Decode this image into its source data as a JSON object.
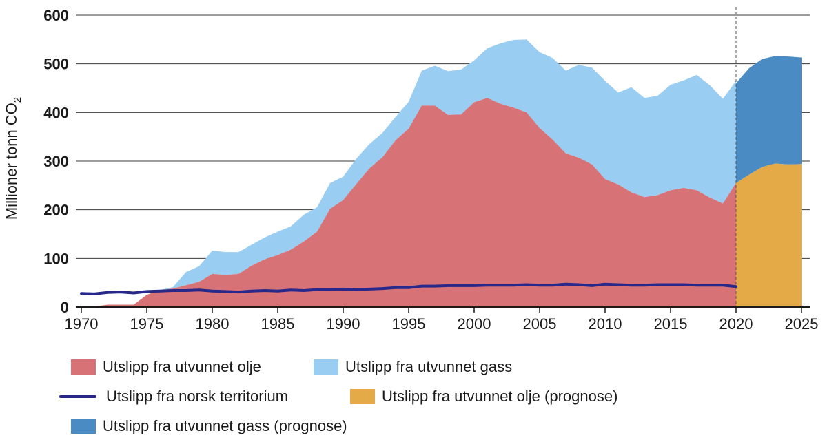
{
  "chart_data": {
    "type": "area",
    "ylabel": "Millioner tonn CO",
    "ylabel_subscript": "2",
    "ylim": [
      0,
      600
    ],
    "xlim": [
      1970,
      2025
    ],
    "yticks": [
      0,
      100,
      200,
      300,
      400,
      500,
      600
    ],
    "xticks": [
      1970,
      1975,
      1980,
      1985,
      1990,
      1995,
      2000,
      2005,
      2010,
      2015,
      2020,
      2025
    ],
    "grid": "horizontal",
    "stacked": true,
    "forecast_start": 2020,
    "x": [
      1970,
      1971,
      1972,
      1973,
      1974,
      1975,
      1976,
      1977,
      1978,
      1979,
      1980,
      1981,
      1982,
      1983,
      1984,
      1985,
      1986,
      1987,
      1988,
      1989,
      1990,
      1991,
      1992,
      1993,
      1994,
      1995,
      1996,
      1997,
      1998,
      1999,
      2000,
      2001,
      2002,
      2003,
      2004,
      2005,
      2006,
      2007,
      2008,
      2009,
      2010,
      2011,
      2012,
      2013,
      2014,
      2015,
      2016,
      2017,
      2018,
      2019,
      2020
    ],
    "series": [
      {
        "name": "Utslipp fra utvunnet olje",
        "kind": "area",
        "color": "#d77376",
        "values": [
          0,
          1,
          5,
          5,
          5,
          25,
          35,
          38,
          45,
          52,
          68,
          66,
          68,
          85,
          98,
          107,
          118,
          135,
          155,
          202,
          220,
          253,
          285,
          308,
          343,
          367,
          414,
          414,
          395,
          396,
          421,
          430,
          418,
          410,
          400,
          368,
          344,
          316,
          307,
          293,
          263,
          252,
          236,
          226,
          230,
          240,
          245,
          240,
          225,
          213,
          255
        ]
      },
      {
        "name": "Utslipp fra utvunnet gass",
        "kind": "area",
        "color": "#99cdf2",
        "values": [
          0,
          0,
          0,
          0,
          0,
          0,
          0,
          3,
          27,
          32,
          48,
          47,
          45,
          43,
          45,
          48,
          48,
          55,
          50,
          53,
          48,
          52,
          50,
          50,
          48,
          55,
          72,
          82,
          90,
          92,
          86,
          102,
          124,
          139,
          150,
          156,
          168,
          170,
          191,
          199,
          202,
          189,
          216,
          204,
          204,
          217,
          221,
          237,
          231,
          215,
          210
        ]
      },
      {
        "name": "Utslipp fra norsk territorium",
        "kind": "line",
        "color": "#27288a",
        "values": [
          28,
          27,
          30,
          31,
          29,
          32,
          33,
          34,
          34,
          35,
          33,
          32,
          31,
          33,
          34,
          33,
          35,
          34,
          36,
          36,
          37,
          36,
          37,
          38,
          40,
          40,
          43,
          43,
          44,
          44,
          44,
          45,
          45,
          45,
          46,
          45,
          45,
          47,
          46,
          44,
          47,
          46,
          45,
          45,
          46,
          46,
          46,
          45,
          45,
          45,
          42
        ]
      },
      {
        "name": "Utslipp fra utvunnet olje (prognose)",
        "kind": "area",
        "color": "#e4aa47",
        "x": [
          2020,
          2021,
          2022,
          2023,
          2024,
          2025
        ],
        "values": [
          255,
          272,
          288,
          295,
          293,
          294
        ]
      },
      {
        "name": "Utslipp fra utvunnet gass (prognose)",
        "kind": "area",
        "color": "#4b8bc4",
        "x": [
          2020,
          2021,
          2022,
          2023,
          2024,
          2025
        ],
        "values": [
          205,
          219,
          222,
          221,
          222,
          219
        ]
      }
    ]
  }
}
